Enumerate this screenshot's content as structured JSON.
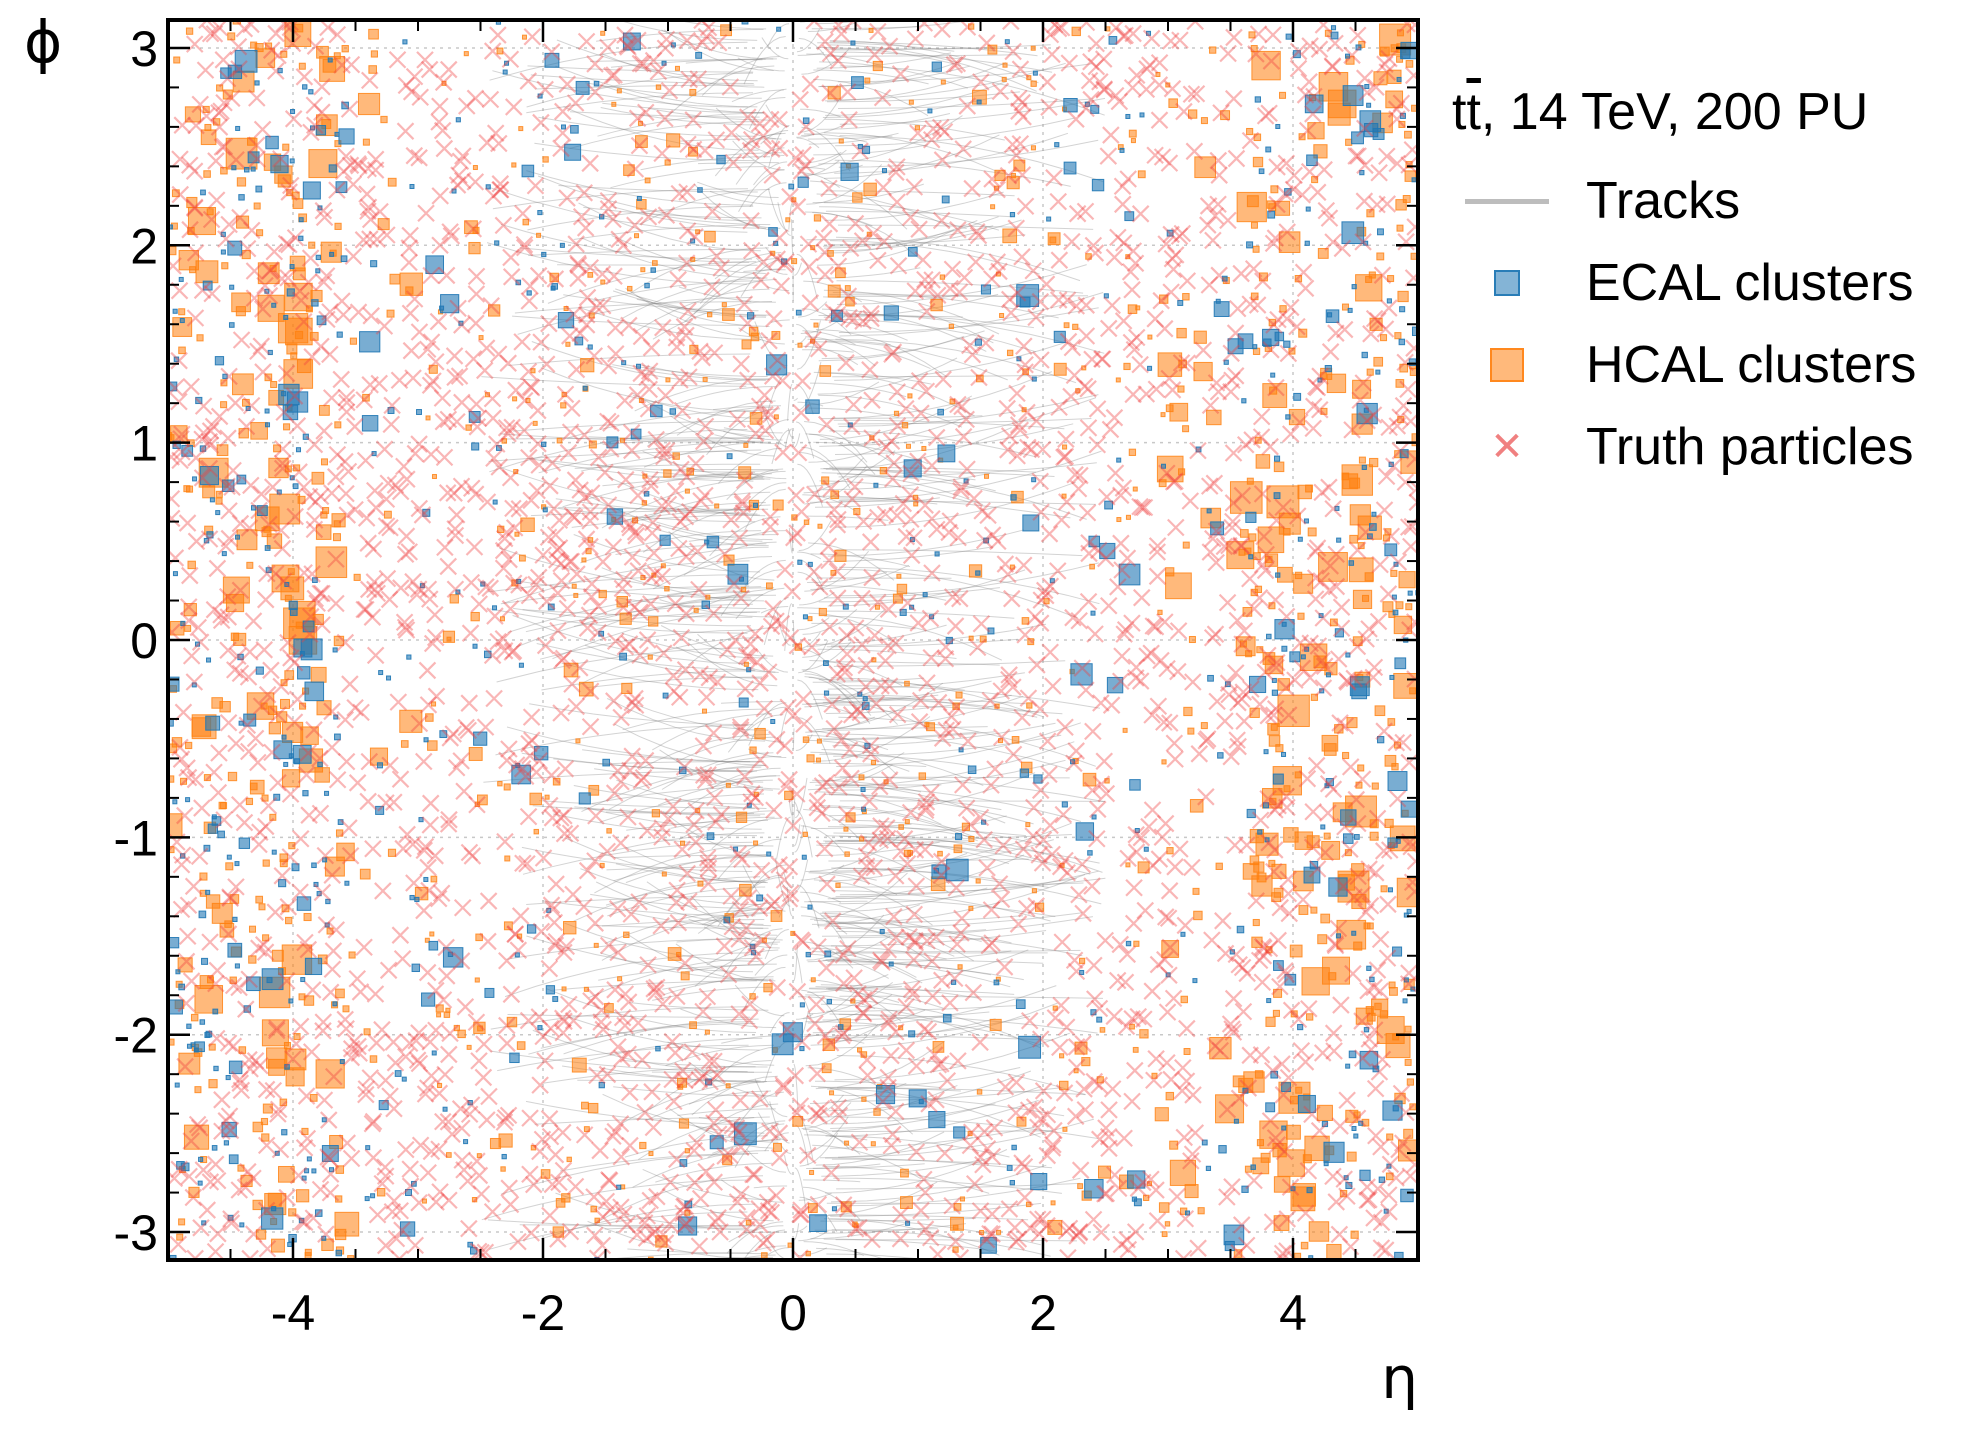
{
  "chart_data": {
    "type": "scatter",
    "title": "",
    "xlabel": "η",
    "ylabel": "ϕ",
    "xlim": [
      -5,
      5
    ],
    "ylim": [
      -3.14159,
      3.14159
    ],
    "xticks": [
      -4,
      -2,
      0,
      2,
      4
    ],
    "xtick_labels": [
      "-4",
      "-2",
      "0",
      "2",
      "4"
    ],
    "yticks": [
      -3,
      -2,
      -1,
      0,
      1,
      2,
      3
    ],
    "ytick_labels": [
      "-3",
      "-2",
      "-1",
      "0",
      "1",
      "2",
      "3"
    ],
    "grid": true,
    "legend_position": "outside-right",
    "legend_title": {
      "prefix": "t",
      "bar": "t",
      "suffix": ", 14 TeV, 200 PU"
    },
    "series": [
      {
        "name": "Tracks",
        "kind": "line",
        "color": "#808080",
        "eta_range": [
          -2.5,
          2.5
        ],
        "count": 900
      },
      {
        "name": "ECAL clusters",
        "kind": "square",
        "color": "#1f77b4",
        "eta_range": [
          -5,
          5
        ],
        "count": 700
      },
      {
        "name": "HCAL clusters",
        "kind": "square",
        "color": "#ff7f0e",
        "eta_range": [
          -5,
          5
        ],
        "count": 1100
      },
      {
        "name": "Truth particles",
        "kind": "x",
        "color": "#f04040",
        "eta_range": [
          -5,
          5
        ],
        "count": 2600
      }
    ]
  }
}
